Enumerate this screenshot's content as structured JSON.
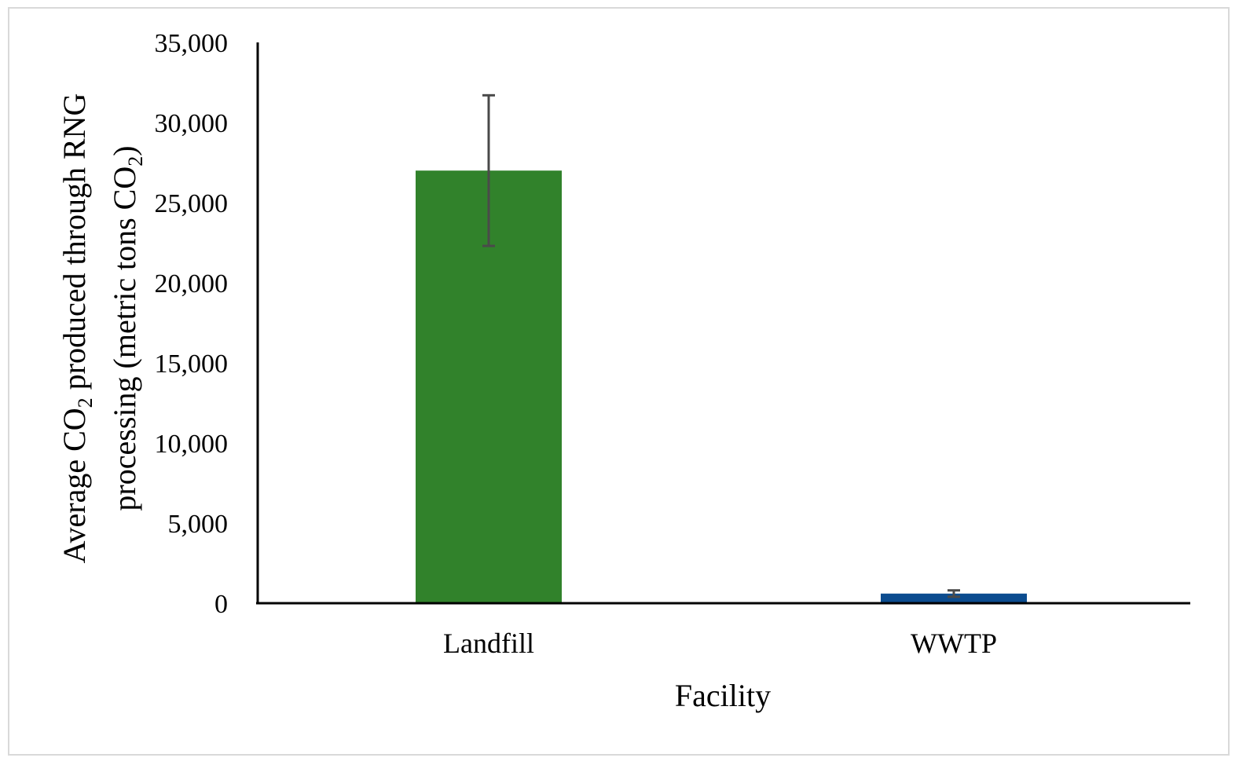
{
  "chart_data": {
    "type": "bar",
    "categories": [
      "Landfill",
      "WWTP"
    ],
    "values": [
      27000,
      600
    ],
    "error": [
      4700,
      200
    ],
    "colors": [
      "#31822b",
      "#0c4c8f"
    ],
    "xlabel": "Facility",
    "ylabel": {
      "line1_a": "Average CO",
      "line1_sub": "2",
      "line1_b": " produced through RNG",
      "line2_a": "processing (metric tons CO",
      "line2_sub": "2",
      "line2_b": ")"
    },
    "ylim": [
      0,
      35000
    ],
    "yticks": [
      0,
      5000,
      10000,
      15000,
      20000,
      25000,
      30000,
      35000
    ],
    "ytick_labels": [
      "0",
      "5,000",
      "10,000",
      "15,000",
      "20,000",
      "25,000",
      "30,000",
      "35,000"
    ],
    "grid": false,
    "legend": "none"
  }
}
